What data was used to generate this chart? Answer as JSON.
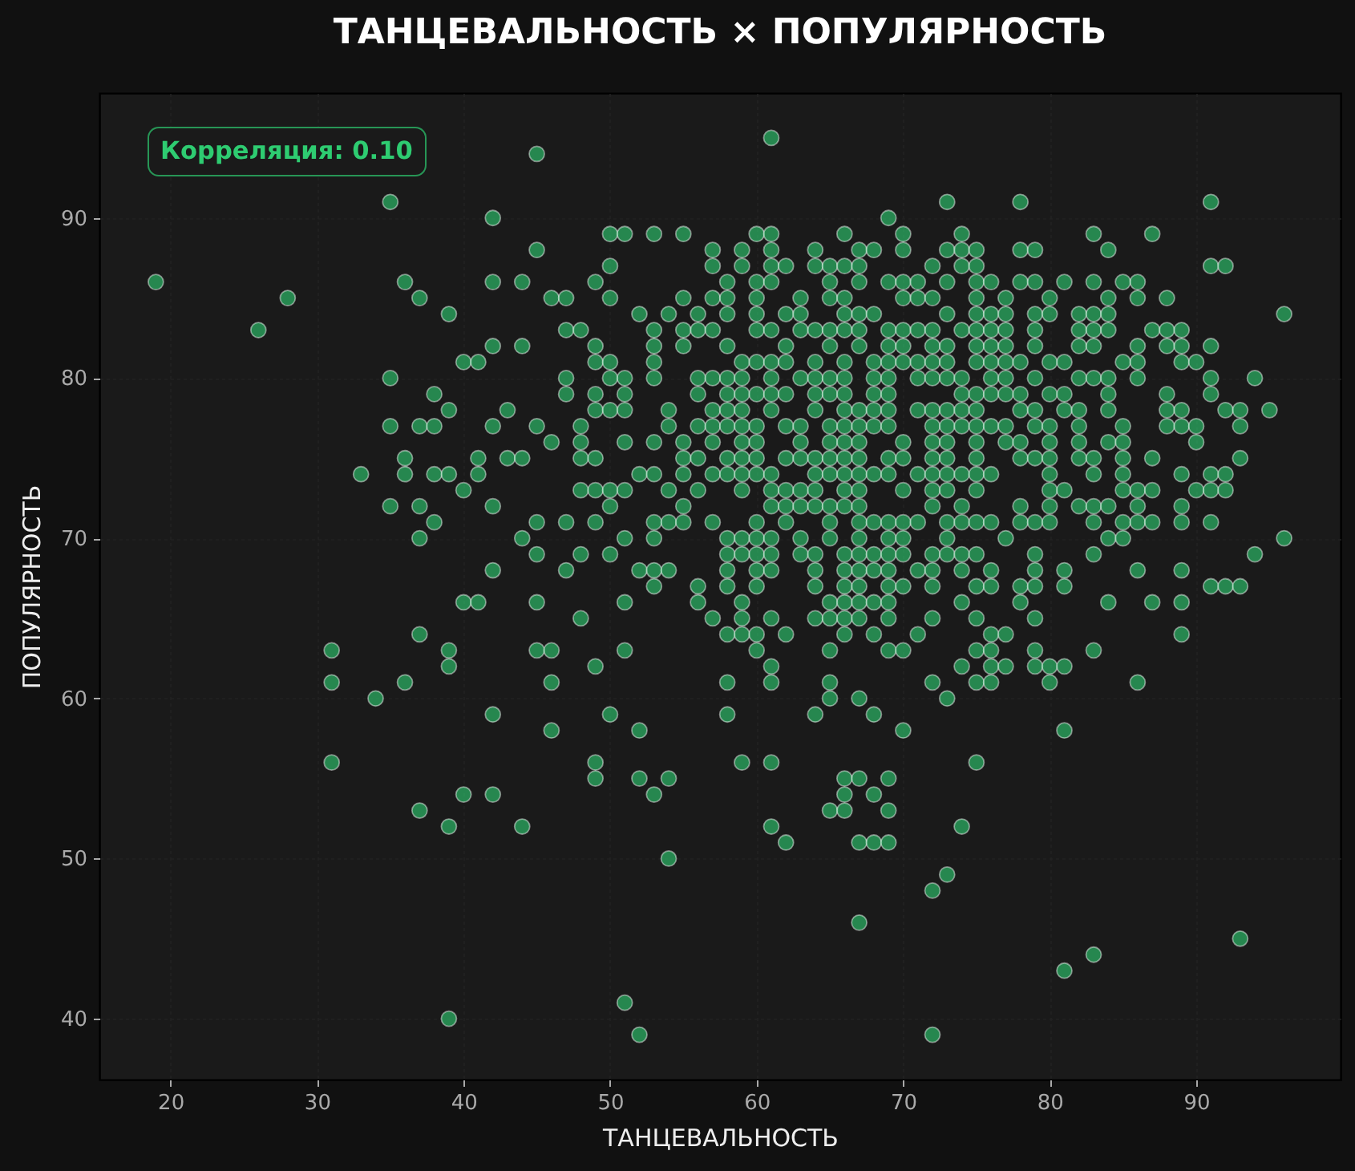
{
  "chart_data": {
    "type": "scatter",
    "title": "ТАНЦЕВАЛЬНОСТЬ × ПОПУЛЯРНОСТЬ",
    "xlabel": "ТАНЦЕВАЛЬНОСТЬ",
    "ylabel": "ПОПУЛЯРНОСТЬ",
    "annotations": [
      "Корреляция: 0.10"
    ],
    "color": "#2ecc71",
    "marker": "circle",
    "grid": true,
    "xlim": [
      15.15,
      99.85
    ],
    "ylim": [
      36.2,
      97.8
    ],
    "xticks": [
      20,
      30,
      40,
      50,
      60,
      70,
      80,
      90
    ],
    "yticks": [
      40,
      50,
      60,
      70,
      80,
      90
    ],
    "x": [
      61,
      45,
      35,
      73,
      78,
      91,
      42,
      69,
      50,
      51,
      53,
      55,
      60,
      61,
      66,
      70,
      74,
      83,
      87,
      45,
      57,
      59,
      61,
      64,
      67,
      68,
      70,
      73,
      74,
      75,
      78,
      79,
      84,
      50,
      57,
      59,
      61,
      62,
      64,
      65,
      66,
      67,
      72,
      74,
      75,
      91,
      92,
      19,
      36,
      42,
      44,
      49,
      58,
      60,
      61,
      65,
      67,
      69,
      70,
      71,
      73,
      75,
      76,
      78,
      79,
      81,
      83,
      85,
      86,
      28,
      37,
      46,
      47,
      50,
      55,
      57,
      58,
      60,
      63,
      65,
      66,
      70,
      71,
      72,
      75,
      77,
      80,
      84,
      86,
      88,
      39,
      52,
      54,
      56,
      58,
      60,
      62,
      63,
      66,
      67,
      68,
      73,
      75,
      76,
      77,
      79,
      80,
      82,
      83,
      84,
      96,
      26,
      47,
      48,
      53,
      55,
      56,
      57,
      60,
      61,
      63,
      64,
      65,
      66,
      67,
      69,
      70,
      71,
      72,
      74,
      75,
      76,
      77,
      79,
      82,
      83,
      84,
      87,
      88,
      89,
      42,
      44,
      49,
      53,
      55,
      58,
      62,
      65,
      67,
      69,
      70,
      72,
      73,
      75,
      76,
      77,
      79,
      82,
      83,
      86,
      88,
      89,
      91,
      40,
      41,
      49,
      50,
      53,
      59,
      60,
      61,
      62,
      64,
      66,
      68,
      69,
      70,
      71,
      72,
      73,
      75,
      76,
      77,
      78,
      80,
      81,
      85,
      86,
      89,
      90,
      35,
      47,
      50,
      51,
      53,
      56,
      57,
      58,
      59,
      61,
      63,
      64,
      65,
      66,
      68,
      69,
      71,
      72,
      73,
      74,
      76,
      77,
      79,
      82,
      83,
      84,
      86,
      91,
      94,
      38,
      47,
      49,
      51,
      56,
      58,
      59,
      60,
      61,
      62,
      64,
      65,
      66,
      68,
      69,
      74,
      75,
      76,
      77,
      78,
      80,
      81,
      84,
      88,
      91,
      39,
      43,
      49,
      50,
      51,
      54,
      57,
      58,
      59,
      61,
      64,
      66,
      67,
      68,
      69,
      71,
      72,
      73,
      74,
      75,
      78,
      79,
      81,
      82,
      84,
      88,
      89,
      92,
      93,
      95,
      35,
      37,
      38,
      42,
      45,
      48,
      54,
      56,
      57,
      58,
      59,
      60,
      62,
      63,
      65,
      66,
      67,
      68,
      69,
      72,
      73,
      74,
      75,
      76,
      77,
      79,
      80,
      82,
      85,
      88,
      89,
      90,
      93,
      46,
      48,
      51,
      53,
      55,
      57,
      59,
      60,
      63,
      65,
      66,
      67,
      70,
      72,
      73,
      75,
      77,
      78,
      80,
      82,
      84,
      85,
      90,
      36,
      41,
      43,
      44,
      48,
      49,
      55,
      56,
      58,
      59,
      60,
      62,
      63,
      64,
      65,
      66,
      67,
      69,
      70,
      72,
      73,
      75,
      78,
      79,
      80,
      82,
      83,
      85,
      87,
      93,
      33,
      36,
      38,
      39,
      41,
      52,
      53,
      55,
      57,
      58,
      59,
      60,
      61,
      64,
      65,
      66,
      67,
      68,
      69,
      71,
      72,
      73,
      74,
      75,
      76,
      80,
      83,
      85,
      89,
      91,
      92,
      40,
      48,
      49,
      50,
      51,
      54,
      56,
      59,
      61,
      62,
      63,
      64,
      66,
      67,
      70,
      72,
      73,
      75,
      80,
      81,
      85,
      86,
      87,
      90,
      91,
      92,
      35,
      37,
      42,
      50,
      55,
      61,
      62,
      63,
      64,
      65,
      66,
      67,
      72,
      74,
      78,
      80,
      82,
      83,
      84,
      86,
      89,
      38,
      45,
      47,
      49,
      53,
      54,
      55,
      57,
      60,
      62,
      65,
      67,
      68,
      69,
      70,
      71,
      73,
      74,
      75,
      76,
      78,
      79,
      80,
      83,
      85,
      86,
      87,
      89,
      91,
      37,
      44,
      51,
      53,
      58,
      59,
      60,
      61,
      63,
      65,
      67,
      69,
      70,
      73,
      77,
      84,
      85,
      96,
      45,
      48,
      50,
      58,
      59,
      60,
      61,
      63,
      64,
      66,
      67,
      68,
      69,
      70,
      72,
      73,
      74,
      75,
      79,
      83,
      94,
      42,
      47,
      52,
      53,
      54,
      58,
      60,
      61,
      64,
      66,
      67,
      68,
      69,
      71,
      72,
      74,
      76,
      79,
      81,
      86,
      89,
      53,
      56,
      58,
      60,
      64,
      66,
      67,
      69,
      70,
      72,
      75,
      76,
      78,
      79,
      81,
      91,
      92,
      93,
      40,
      41,
      45,
      51,
      56,
      59,
      65,
      66,
      67,
      68,
      69,
      74,
      78,
      84,
      87,
      89,
      48,
      57,
      59,
      61,
      64,
      65,
      66,
      67,
      69,
      72,
      75,
      79,
      37,
      58,
      59,
      60,
      62,
      66,
      68,
      71,
      76,
      77,
      89,
      31,
      39,
      45,
      46,
      51,
      60,
      65,
      69,
      70,
      75,
      76,
      79,
      83,
      39,
      49,
      61,
      74,
      76,
      77,
      79,
      80,
      81,
      31,
      36,
      46,
      58,
      61,
      65,
      72,
      75,
      76,
      80,
      86,
      34,
      65,
      67,
      73,
      42,
      50,
      58,
      64,
      68,
      46,
      52,
      70,
      81,
      31,
      49,
      59,
      61,
      75,
      49,
      52,
      54,
      66,
      67,
      69,
      40,
      42,
      53,
      66,
      68,
      37,
      65,
      66,
      69,
      39,
      44,
      61,
      74,
      62,
      67,
      68,
      69,
      54,
      73,
      72,
      67,
      93,
      83,
      81,
      51,
      39,
      52,
      72
    ],
    "values": [
      95,
      94,
      91,
      91,
      91,
      91,
      90,
      90,
      89,
      89,
      89,
      89,
      89,
      89,
      89,
      89,
      89,
      89,
      89,
      88,
      88,
      88,
      88,
      88,
      88,
      88,
      88,
      88,
      88,
      88,
      88,
      88,
      88,
      87,
      87,
      87,
      87,
      87,
      87,
      87,
      87,
      87,
      87,
      87,
      87,
      87,
      87,
      86,
      86,
      86,
      86,
      86,
      86,
      86,
      86,
      86,
      86,
      86,
      86,
      86,
      86,
      86,
      86,
      86,
      86,
      86,
      86,
      86,
      86,
      85,
      85,
      85,
      85,
      85,
      85,
      85,
      85,
      85,
      85,
      85,
      85,
      85,
      85,
      85,
      85,
      85,
      85,
      85,
      85,
      85,
      84,
      84,
      84,
      84,
      84,
      84,
      84,
      84,
      84,
      84,
      84,
      84,
      84,
      84,
      84,
      84,
      84,
      84,
      84,
      84,
      84,
      83,
      83,
      83,
      83,
      83,
      83,
      83,
      83,
      83,
      83,
      83,
      83,
      83,
      83,
      83,
      83,
      83,
      83,
      83,
      83,
      83,
      83,
      83,
      83,
      83,
      83,
      83,
      83,
      83,
      82,
      82,
      82,
      82,
      82,
      82,
      82,
      82,
      82,
      82,
      82,
      82,
      82,
      82,
      82,
      82,
      82,
      82,
      82,
      82,
      82,
      82,
      82,
      81,
      81,
      81,
      81,
      81,
      81,
      81,
      81,
      81,
      81,
      81,
      81,
      81,
      81,
      81,
      81,
      81,
      81,
      81,
      81,
      81,
      81,
      81,
      81,
      81,
      81,
      81,
      80,
      80,
      80,
      80,
      80,
      80,
      80,
      80,
      80,
      80,
      80,
      80,
      80,
      80,
      80,
      80,
      80,
      80,
      80,
      80,
      80,
      80,
      80,
      80,
      80,
      80,
      80,
      80,
      80,
      79,
      79,
      79,
      79,
      79,
      79,
      79,
      79,
      79,
      79,
      79,
      79,
      79,
      79,
      79,
      79,
      79,
      79,
      79,
      79,
      79,
      79,
      79,
      79,
      79,
      78,
      78,
      78,
      78,
      78,
      78,
      78,
      78,
      78,
      78,
      78,
      78,
      78,
      78,
      78,
      78,
      78,
      78,
      78,
      78,
      78,
      78,
      78,
      78,
      78,
      78,
      78,
      78,
      78,
      78,
      77,
      77,
      77,
      77,
      77,
      77,
      77,
      77,
      77,
      77,
      77,
      77,
      77,
      77,
      77,
      77,
      77,
      77,
      77,
      77,
      77,
      77,
      77,
      77,
      77,
      77,
      77,
      77,
      77,
      77,
      77,
      77,
      77,
      76,
      76,
      76,
      76,
      76,
      76,
      76,
      76,
      76,
      76,
      76,
      76,
      76,
      76,
      76,
      76,
      76,
      76,
      76,
      76,
      76,
      76,
      76,
      75,
      75,
      75,
      75,
      75,
      75,
      75,
      75,
      75,
      75,
      75,
      75,
      75,
      75,
      75,
      75,
      75,
      75,
      75,
      75,
      75,
      75,
      75,
      75,
      75,
      75,
      75,
      75,
      75,
      75,
      74,
      74,
      74,
      74,
      74,
      74,
      74,
      74,
      74,
      74,
      74,
      74,
      74,
      74,
      74,
      74,
      74,
      74,
      74,
      74,
      74,
      74,
      74,
      74,
      74,
      74,
      74,
      74,
      74,
      74,
      74,
      73,
      73,
      73,
      73,
      73,
      73,
      73,
      73,
      73,
      73,
      73,
      73,
      73,
      73,
      73,
      73,
      73,
      73,
      73,
      73,
      73,
      73,
      73,
      73,
      73,
      73,
      72,
      72,
      72,
      72,
      72,
      72,
      72,
      72,
      72,
      72,
      72,
      72,
      72,
      72,
      72,
      72,
      72,
      72,
      72,
      72,
      72,
      71,
      71,
      71,
      71,
      71,
      71,
      71,
      71,
      71,
      71,
      71,
      71,
      71,
      71,
      71,
      71,
      71,
      71,
      71,
      71,
      71,
      71,
      71,
      71,
      71,
      71,
      71,
      71,
      71,
      70,
      70,
      70,
      70,
      70,
      70,
      70,
      70,
      70,
      70,
      70,
      70,
      70,
      70,
      70,
      70,
      70,
      70,
      69,
      69,
      69,
      69,
      69,
      69,
      69,
      69,
      69,
      69,
      69,
      69,
      69,
      69,
      69,
      69,
      69,
      69,
      69,
      69,
      69,
      68,
      68,
      68,
      68,
      68,
      68,
      68,
      68,
      68,
      68,
      68,
      68,
      68,
      68,
      68,
      68,
      68,
      68,
      68,
      68,
      68,
      67,
      67,
      67,
      67,
      67,
      67,
      67,
      67,
      67,
      67,
      67,
      67,
      67,
      67,
      67,
      67,
      67,
      67,
      66,
      66,
      66,
      66,
      66,
      66,
      66,
      66,
      66,
      66,
      66,
      66,
      66,
      66,
      66,
      66,
      65,
      65,
      65,
      65,
      65,
      65,
      65,
      65,
      65,
      65,
      65,
      65,
      64,
      64,
      64,
      64,
      64,
      64,
      64,
      64,
      64,
      64,
      64,
      63,
      63,
      63,
      63,
      63,
      63,
      63,
      63,
      63,
      63,
      63,
      63,
      63,
      62,
      62,
      62,
      62,
      62,
      62,
      62,
      62,
      62,
      61,
      61,
      61,
      61,
      61,
      61,
      61,
      61,
      61,
      61,
      61,
      60,
      60,
      60,
      60,
      59,
      59,
      59,
      59,
      59,
      58,
      58,
      58,
      58,
      56,
      56,
      56,
      56,
      56,
      55,
      55,
      55,
      55,
      55,
      55,
      54,
      54,
      54,
      54,
      54,
      53,
      53,
      53,
      53,
      52,
      52,
      52,
      52,
      51,
      51,
      51,
      51,
      50,
      49,
      48,
      46,
      45,
      44,
      43,
      41,
      40,
      39,
      39
    ]
  }
}
